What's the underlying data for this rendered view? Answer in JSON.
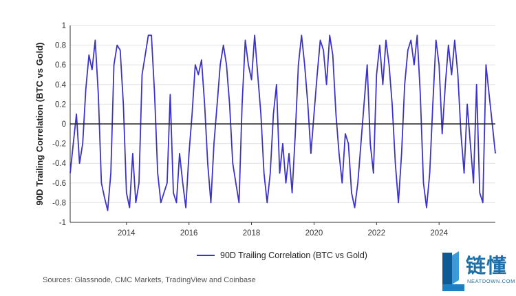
{
  "chart_data": {
    "type": "line",
    "xlabel": "",
    "ylabel": "90D Trailing Correlation (BTC vs Gold)",
    "ylim": [
      -1,
      1
    ],
    "yticks": [
      "-1",
      "-0.8",
      "-0.6",
      "-0.4",
      "-0.2",
      "0",
      "0.2",
      "0.4",
      "0.6",
      "0.8",
      "1"
    ],
    "xlim": [
      2012.2,
      2025.8
    ],
    "xticks": [
      "2014",
      "2016",
      "2018",
      "2020",
      "2022",
      "2024"
    ],
    "grid": "horizontal",
    "legend": "bottom-center",
    "series": [
      {
        "name": "90D Trailing Correlation (BTC vs Gold)",
        "color": "#3b33c9",
        "x": [
          2012.2,
          2012.3,
          2012.4,
          2012.5,
          2012.6,
          2012.7,
          2012.8,
          2012.9,
          2013.0,
          2013.1,
          2013.2,
          2013.3,
          2013.4,
          2013.5,
          2013.6,
          2013.7,
          2013.8,
          2013.9,
          2014.0,
          2014.1,
          2014.2,
          2014.3,
          2014.4,
          2014.5,
          2014.6,
          2014.7,
          2014.8,
          2014.9,
          2015.0,
          2015.1,
          2015.2,
          2015.3,
          2015.4,
          2015.5,
          2015.6,
          2015.7,
          2015.8,
          2015.9,
          2016.0,
          2016.1,
          2016.2,
          2016.3,
          2016.4,
          2016.5,
          2016.6,
          2016.7,
          2016.8,
          2016.9,
          2017.0,
          2017.1,
          2017.2,
          2017.3,
          2017.4,
          2017.5,
          2017.6,
          2017.7,
          2017.8,
          2017.9,
          2018.0,
          2018.1,
          2018.2,
          2018.3,
          2018.4,
          2018.5,
          2018.6,
          2018.7,
          2018.8,
          2018.9,
          2019.0,
          2019.1,
          2019.2,
          2019.3,
          2019.4,
          2019.5,
          2019.6,
          2019.7,
          2019.8,
          2019.9,
          2020.0,
          2020.1,
          2020.2,
          2020.3,
          2020.4,
          2020.5,
          2020.6,
          2020.7,
          2020.8,
          2020.9,
          2021.0,
          2021.1,
          2021.2,
          2021.3,
          2021.4,
          2021.5,
          2021.6,
          2021.7,
          2021.8,
          2021.9,
          2022.0,
          2022.1,
          2022.2,
          2022.3,
          2022.4,
          2022.5,
          2022.6,
          2022.7,
          2022.8,
          2022.9,
          2023.0,
          2023.1,
          2023.2,
          2023.3,
          2023.4,
          2023.5,
          2023.6,
          2023.7,
          2023.8,
          2023.9,
          2024.0,
          2024.1,
          2024.2,
          2024.3,
          2024.4,
          2024.5,
          2024.6,
          2024.7,
          2024.8,
          2024.9,
          2025.0,
          2025.1,
          2025.2,
          2025.3,
          2025.4,
          2025.5,
          2025.6,
          2025.7,
          2025.8
        ],
        "values": [
          -0.5,
          -0.2,
          0.1,
          -0.4,
          -0.2,
          0.35,
          0.7,
          0.55,
          0.85,
          0.3,
          -0.6,
          -0.75,
          -0.88,
          -0.5,
          0.6,
          0.8,
          0.75,
          0.2,
          -0.7,
          -0.85,
          -0.3,
          -0.8,
          -0.6,
          0.5,
          0.7,
          0.9,
          0.9,
          0.3,
          -0.5,
          -0.8,
          -0.7,
          -0.6,
          0.3,
          -0.7,
          -0.8,
          -0.3,
          -0.6,
          -0.85,
          -0.3,
          0.1,
          0.6,
          0.5,
          0.65,
          0.2,
          -0.4,
          -0.8,
          -0.2,
          0.2,
          0.6,
          0.8,
          0.6,
          0.2,
          -0.4,
          -0.6,
          -0.8,
          0.2,
          0.85,
          0.6,
          0.45,
          0.9,
          0.5,
          0.1,
          -0.5,
          -0.8,
          -0.5,
          0.1,
          0.4,
          -0.5,
          -0.2,
          -0.6,
          -0.3,
          -0.7,
          -0.1,
          0.6,
          0.9,
          0.6,
          0.2,
          -0.3,
          0.1,
          0.5,
          0.85,
          0.75,
          0.4,
          0.9,
          0.7,
          0.1,
          -0.3,
          -0.6,
          -0.1,
          -0.2,
          -0.7,
          -0.85,
          -0.6,
          -0.2,
          0.2,
          0.6,
          -0.2,
          -0.5,
          0.5,
          0.8,
          0.4,
          0.85,
          0.6,
          0.2,
          -0.4,
          -0.8,
          -0.3,
          0.4,
          0.75,
          0.85,
          0.6,
          0.9,
          0.3,
          -0.6,
          -0.85,
          -0.5,
          0.2,
          0.85,
          0.6,
          -0.1,
          0.4,
          0.8,
          0.5,
          0.85,
          0.5,
          -0.1,
          -0.5,
          0.2,
          -0.2,
          -0.6,
          0.4,
          -0.7,
          -0.8,
          0.6,
          0.3,
          0.0,
          -0.3
        ]
      }
    ]
  },
  "legend": {
    "label": "90D Trailing Correlation (BTC vs Gold)"
  },
  "footer": {
    "source": "Sources: Glassnode, CMC Markets, TradingView and Coinbase"
  },
  "logo": {
    "text_cn": "链懂",
    "text_en": "NEATDOWN.COM"
  }
}
